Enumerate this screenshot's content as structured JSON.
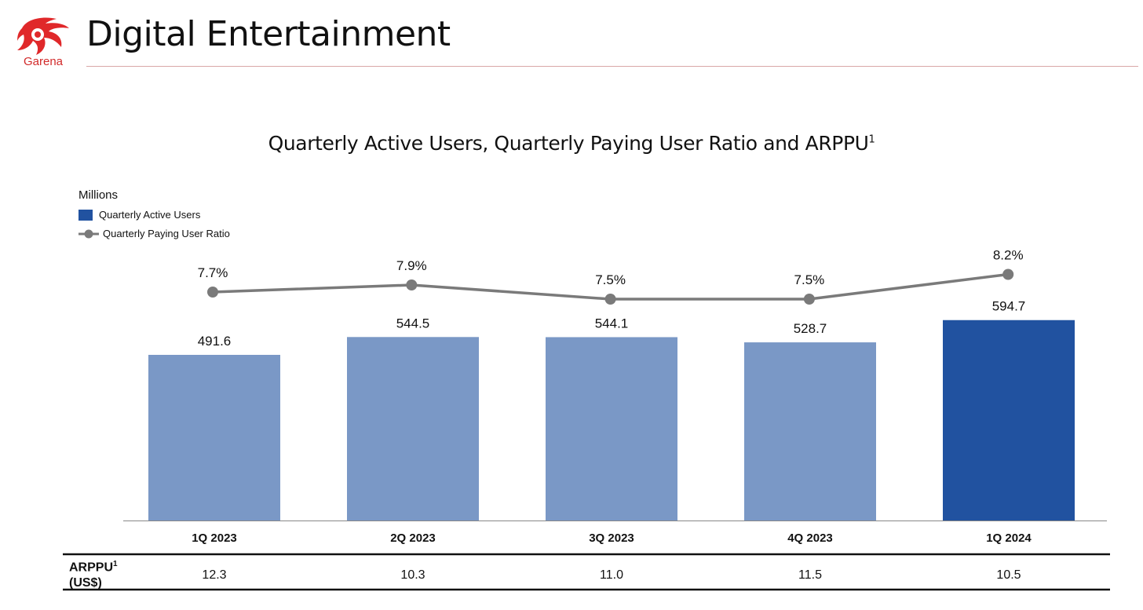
{
  "header": {
    "logo_text": "Garena",
    "title": "Digital Entertainment"
  },
  "colors": {
    "brand_red": "#e0282a",
    "bar_light": "#7a98c6",
    "bar_highlight": "#2152a0",
    "line": "#7a7a7a",
    "rule": "#d9a7a7"
  },
  "chart_data": {
    "type": "bar",
    "title": "Quarterly Active Users, Quarterly Paying User Ratio and ARPPU",
    "title_superscript": "1",
    "units_label": "Millions",
    "categories": [
      "1Q 2023",
      "2Q 2023",
      "3Q 2023",
      "4Q 2023",
      "1Q 2024"
    ],
    "series": [
      {
        "name": "Quarterly Active Users",
        "type": "bar",
        "values": [
          491.6,
          544.5,
          544.1,
          528.7,
          594.7
        ],
        "labels": [
          "491.6",
          "544.5",
          "544.1",
          "528.7",
          "594.7"
        ],
        "highlight_index": 4
      },
      {
        "name": "Quarterly Paying User Ratio",
        "type": "line",
        "values": [
          7.7,
          7.9,
          7.5,
          7.5,
          8.2
        ],
        "labels": [
          "7.7%",
          "7.9%",
          "7.5%",
          "7.5%",
          "8.2%"
        ]
      }
    ],
    "legend_position": "top-left",
    "grid": false,
    "table": {
      "row_label": "ARPPU",
      "row_label_superscript": "1",
      "row_unit": "(US$)",
      "values": [
        "12.3",
        "10.3",
        "11.0",
        "11.5",
        "10.5"
      ]
    }
  }
}
